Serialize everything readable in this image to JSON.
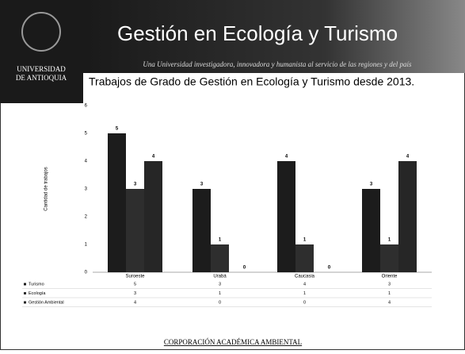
{
  "header": {
    "logo_lines": [
      "UNIVERSIDAD",
      "DE ANTIOQUIA"
    ],
    "title": "Gestión en Ecología y Turismo",
    "subtitle": "Una Universidad investigadora, innovadora y humanista al servicio de las regiones y del país"
  },
  "footer": "CORPORACIÓN ACADÉMICA AMBIENTAL",
  "chart_data": {
    "type": "bar",
    "title": "Trabajos de Grado de Gestión en Ecología y Turismo desde 2013.",
    "y_label": "Cantidad de trabajos",
    "categories": [
      "Suroeste",
      "Urabá",
      "Caucasia",
      "Oriente"
    ],
    "series": [
      {
        "name": "Turismo",
        "color": "#1c1c1c",
        "values": [
          5,
          3,
          4,
          3
        ]
      },
      {
        "name": "Ecología",
        "color": "#2e2e2e",
        "values": [
          3,
          1,
          1,
          1
        ]
      },
      {
        "name": "Gestión Ambiental",
        "color": "#262626",
        "values": [
          4,
          0,
          0,
          4
        ]
      }
    ],
    "ylim": [
      0,
      6
    ],
    "yticks": [
      0,
      1,
      2,
      3,
      4,
      5,
      6
    ]
  }
}
